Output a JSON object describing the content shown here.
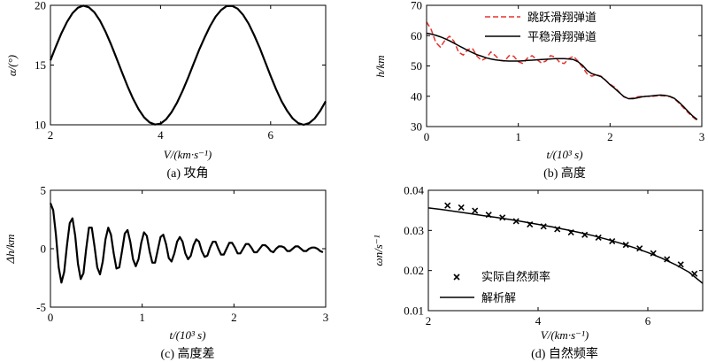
{
  "chart_data": [
    {
      "id": "a",
      "type": "line",
      "caption": "(a) 攻角",
      "xlabel": "V/(km·s⁻¹)",
      "ylabel": "α/(°)",
      "xlim": [
        2,
        7
      ],
      "ylim": [
        10,
        20
      ],
      "xticks": [
        2,
        4,
        6
      ],
      "yticks": [
        10,
        15,
        20
      ],
      "series": [
        {
          "name": "攻角",
          "color": "#000000",
          "x": [
            2.0,
            2.1,
            2.2,
            2.3,
            2.4,
            2.5,
            2.6,
            2.7,
            2.8,
            2.9,
            3.0,
            3.1,
            3.2,
            3.3,
            3.4,
            3.5,
            3.6,
            3.7,
            3.8,
            3.9,
            4.0,
            4.1,
            4.2,
            4.3,
            4.4,
            4.5,
            4.6,
            4.7,
            4.8,
            4.9,
            5.0,
            5.1,
            5.2,
            5.3,
            5.4,
            5.5,
            5.6,
            5.7,
            5.8,
            5.9,
            6.0,
            6.1,
            6.2,
            6.3,
            6.4,
            6.5,
            6.6,
            6.7,
            6.8,
            6.9,
            7.0
          ],
          "y": [
            15.39,
            16.56,
            17.66,
            18.61,
            19.34,
            19.8,
            19.97,
            19.83,
            19.4,
            18.71,
            17.8,
            16.74,
            15.58,
            14.38,
            13.23,
            12.19,
            11.31,
            10.64,
            10.2,
            10.02,
            10.1,
            10.45,
            11.05,
            11.86,
            12.84,
            13.93,
            15.1,
            16.25,
            17.3,
            18.26,
            19.05,
            19.6,
            19.93,
            19.95,
            19.72,
            19.2,
            18.47,
            17.52,
            16.45,
            15.27,
            14.09,
            12.97,
            11.97,
            11.16,
            10.53,
            10.14,
            10.0,
            10.14,
            10.53,
            11.16,
            11.97
          ]
        }
      ]
    },
    {
      "id": "b",
      "type": "line",
      "caption": "(b) 高度",
      "xlabel": "t/(10³ s)",
      "ylabel": "h/km",
      "xlim": [
        0,
        3
      ],
      "ylim": [
        30,
        70
      ],
      "xticks": [
        0,
        1,
        2,
        3
      ],
      "yticks": [
        30,
        40,
        50,
        60,
        70
      ],
      "legend": {
        "placement": "top-right"
      },
      "series": [
        {
          "name": "跳跃滑翔弹道",
          "color": "#e8322f",
          "dash": "dashed",
          "x": [
            0.0,
            0.05,
            0.1,
            0.15,
            0.2,
            0.25,
            0.3,
            0.35,
            0.4,
            0.45,
            0.5,
            0.55,
            0.6,
            0.65,
            0.7,
            0.75,
            0.8,
            0.85,
            0.9,
            0.95,
            1.0,
            1.05,
            1.1,
            1.15,
            1.2,
            1.25,
            1.3,
            1.35,
            1.4,
            1.45,
            1.5,
            1.55,
            1.6,
            1.65,
            1.7,
            1.75,
            1.8,
            1.85,
            1.9,
            1.95,
            2.0,
            2.05,
            2.1,
            2.15,
            2.2,
            2.25,
            2.3,
            2.35,
            2.4,
            2.45,
            2.5,
            2.55,
            2.6,
            2.65,
            2.7,
            2.75,
            2.8,
            2.85,
            2.9,
            2.95
          ],
          "y": [
            64.5,
            62.0,
            57.8,
            56.2,
            58.4,
            59.8,
            58.1,
            54.5,
            53.6,
            55.4,
            55.8,
            53.2,
            51.8,
            52.6,
            54.6,
            53.4,
            51.8,
            51.6,
            53.4,
            53.2,
            51.4,
            50.8,
            52.6,
            53.4,
            52.2,
            51.0,
            51.6,
            53.4,
            53.0,
            51.2,
            50.8,
            52.4,
            53.2,
            51.6,
            49.6,
            47.4,
            46.6,
            47.1,
            46.6,
            45.3,
            44.0,
            43.0,
            41.4,
            39.8,
            39.2,
            39.4,
            39.8,
            40.0,
            40.0,
            39.9,
            40.1,
            40.2,
            40.1,
            39.9,
            39.2,
            37.8,
            36.2,
            34.6,
            33.2,
            32.0
          ]
        },
        {
          "name": "平稳滑翔弹道",
          "color": "#000000",
          "dash": "solid",
          "x": [
            0.0,
            0.05,
            0.1,
            0.15,
            0.2,
            0.25,
            0.3,
            0.35,
            0.4,
            0.45,
            0.5,
            0.55,
            0.6,
            0.65,
            0.7,
            0.75,
            0.8,
            0.85,
            0.9,
            0.95,
            1.0,
            1.05,
            1.1,
            1.15,
            1.2,
            1.25,
            1.3,
            1.35,
            1.4,
            1.45,
            1.5,
            1.55,
            1.6,
            1.65,
            1.7,
            1.75,
            1.8,
            1.85,
            1.9,
            1.95,
            2.0,
            2.05,
            2.1,
            2.15,
            2.2,
            2.25,
            2.3,
            2.35,
            2.4,
            2.45,
            2.5,
            2.55,
            2.6,
            2.65,
            2.7,
            2.75,
            2.8,
            2.85,
            2.9,
            2.95
          ],
          "y": [
            60.8,
            60.5,
            60.1,
            59.6,
            59.0,
            58.3,
            57.5,
            56.7,
            55.9,
            55.1,
            54.4,
            53.7,
            53.2,
            52.7,
            52.3,
            52.0,
            51.8,
            51.7,
            51.6,
            51.6,
            51.6,
            51.7,
            51.8,
            51.9,
            52.0,
            52.1,
            52.2,
            52.3,
            52.4,
            52.4,
            52.4,
            52.3,
            52.1,
            51.4,
            50.2,
            48.5,
            47.5,
            47.0,
            46.5,
            45.3,
            43.8,
            42.6,
            41.2,
            39.9,
            39.2,
            39.2,
            39.5,
            39.8,
            40.0,
            40.1,
            40.3,
            40.4,
            40.3,
            40.0,
            39.3,
            38.1,
            36.6,
            35.0,
            33.5,
            32.3
          ]
        }
      ]
    },
    {
      "id": "c",
      "type": "line",
      "caption": "(c) 高度差",
      "xlabel": "t/(10³ s)",
      "ylabel": "Δh/km",
      "xlim": [
        0,
        3
      ],
      "ylim": [
        -5,
        5
      ],
      "xticks": [
        0,
        1,
        2,
        3
      ],
      "yticks": [
        -5,
        0,
        5
      ],
      "series": [
        {
          "name": "高度差",
          "color": "#000000",
          "x": [
            0.0,
            0.03,
            0.06,
            0.09,
            0.12,
            0.15,
            0.18,
            0.21,
            0.24,
            0.27,
            0.3,
            0.33,
            0.36,
            0.39,
            0.42,
            0.45,
            0.48,
            0.51,
            0.54,
            0.57,
            0.6,
            0.63,
            0.66,
            0.69,
            0.72,
            0.75,
            0.78,
            0.81,
            0.84,
            0.87,
            0.9,
            0.93,
            0.96,
            0.99,
            1.02,
            1.05,
            1.08,
            1.11,
            1.14,
            1.17,
            1.2,
            1.23,
            1.26,
            1.29,
            1.32,
            1.35,
            1.38,
            1.41,
            1.44,
            1.47,
            1.5,
            1.53,
            1.56,
            1.59,
            1.62,
            1.65,
            1.68,
            1.71,
            1.74,
            1.77,
            1.8,
            1.83,
            1.86,
            1.89,
            1.92,
            1.95,
            1.98,
            2.01,
            2.04,
            2.07,
            2.1,
            2.13,
            2.16,
            2.19,
            2.22,
            2.25,
            2.28,
            2.31,
            2.34,
            2.37,
            2.4,
            2.43,
            2.46,
            2.49,
            2.52,
            2.55,
            2.58,
            2.61,
            2.64,
            2.67,
            2.7,
            2.73,
            2.76,
            2.79,
            2.82,
            2.85,
            2.88,
            2.91,
            2.94,
            2.97
          ],
          "y": [
            3.9,
            3.3,
            1.2,
            -1.6,
            -2.9,
            -2.0,
            0.3,
            2.2,
            2.6,
            1.1,
            -1.3,
            -2.6,
            -2.1,
            0.0,
            1.8,
            1.8,
            0.2,
            -1.6,
            -2.2,
            -1.1,
            0.8,
            1.8,
            1.2,
            -0.4,
            -1.7,
            -1.6,
            -0.2,
            1.3,
            1.6,
            0.6,
            -0.9,
            -1.5,
            -0.9,
            0.5,
            1.4,
            1.1,
            -0.2,
            -1.2,
            -1.2,
            -0.1,
            1.0,
            1.2,
            0.4,
            -0.8,
            -1.1,
            -0.4,
            0.6,
            1.0,
            0.6,
            -0.4,
            -0.9,
            -0.6,
            0.3,
            0.8,
            0.6,
            -0.2,
            -0.7,
            -0.6,
            0.1,
            0.6,
            0.6,
            0.0,
            -0.5,
            -0.5,
            0.0,
            0.5,
            0.5,
            0.1,
            -0.4,
            -0.4,
            0.0,
            0.4,
            0.4,
            0.1,
            -0.3,
            -0.3,
            0.0,
            0.3,
            0.3,
            0.1,
            -0.2,
            -0.3,
            0.0,
            0.2,
            0.2,
            0.1,
            -0.2,
            -0.2,
            0.0,
            0.2,
            0.2,
            0.0,
            -0.2,
            -0.2,
            0.0,
            0.1,
            0.1,
            0.0,
            -0.2,
            -0.3
          ]
        }
      ]
    },
    {
      "id": "d",
      "type": "scatter",
      "caption": "(d) 自然频率",
      "xlabel": "V/(km·s⁻¹)",
      "ylabel": "ωn/s⁻¹",
      "xlim": [
        2,
        7
      ],
      "ylim": [
        0.01,
        0.04
      ],
      "xticks": [
        2,
        4,
        6
      ],
      "yticks": [
        0.01,
        0.02,
        0.03,
        0.04
      ],
      "legend": {
        "placement": "bottom-left"
      },
      "series": [
        {
          "name": "实际自然频率",
          "color": "#000000",
          "marker": "x",
          "x": [
            2.35,
            2.6,
            2.85,
            3.1,
            3.35,
            3.6,
            3.85,
            4.1,
            4.35,
            4.6,
            4.85,
            5.1,
            5.35,
            5.6,
            5.85,
            6.1,
            6.35,
            6.6,
            6.85
          ],
          "y": [
            0.0362,
            0.0357,
            0.0349,
            0.0339,
            0.0332,
            0.0323,
            0.0315,
            0.031,
            0.0303,
            0.0295,
            0.0289,
            0.0282,
            0.0273,
            0.0264,
            0.0255,
            0.0243,
            0.0228,
            0.0215,
            0.0192
          ]
        },
        {
          "name": "解析解",
          "color": "#000000",
          "marker": "none",
          "x": [
            2.0,
            2.25,
            2.5,
            2.75,
            3.0,
            3.25,
            3.5,
            3.75,
            4.0,
            4.25,
            4.5,
            4.75,
            5.0,
            5.25,
            5.5,
            5.75,
            6.0,
            6.25,
            6.5,
            6.75,
            7.0
          ],
          "y": [
            0.0356,
            0.0352,
            0.0347,
            0.0342,
            0.0337,
            0.0332,
            0.0327,
            0.0321,
            0.0315,
            0.0309,
            0.0302,
            0.0295,
            0.0287,
            0.0278,
            0.0268,
            0.0257,
            0.0245,
            0.0231,
            0.0215,
            0.0196,
            0.0168
          ]
        }
      ]
    }
  ]
}
